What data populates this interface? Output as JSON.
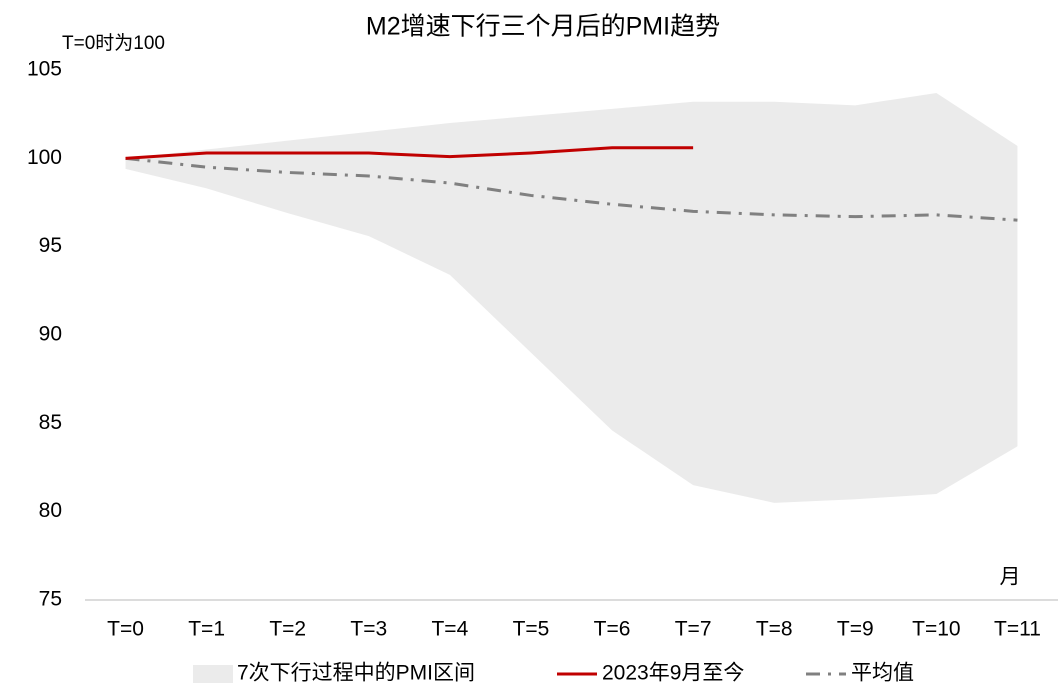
{
  "chart_data": {
    "type": "line",
    "title": "M2增速下行三个月后的PMI趋势",
    "annotations": [
      "T=0时为100",
      "月"
    ],
    "categories": [
      "T=0",
      "T=1",
      "T=2",
      "T=3",
      "T=4",
      "T=5",
      "T=6",
      "T=7",
      "T=8",
      "T=9",
      "T=10",
      "T=11"
    ],
    "band": {
      "name": "7次下行过程中的PMI区间",
      "color": "#ebebeb",
      "upper": [
        100,
        100.5,
        101,
        101.5,
        102,
        102.4,
        102.8,
        103.2,
        103.2,
        103,
        103.7,
        100.7
      ],
      "lower": [
        99.4,
        98.3,
        96.9,
        95.6,
        93.4,
        89,
        84.6,
        81.5,
        80.5,
        80.7,
        81,
        83.7
      ]
    },
    "series": [
      {
        "name": "2023年9月至今",
        "color": "#c00000",
        "dash": "solid",
        "values": [
          100,
          100.3,
          100.3,
          100.3,
          100.1,
          100.3,
          100.6,
          100.6,
          null,
          null,
          null,
          null
        ]
      },
      {
        "name": "平均值",
        "color": "#808080",
        "dash": "dashdot",
        "values": [
          100,
          99.5,
          99.2,
          99,
          98.6,
          97.9,
          97.4,
          97,
          96.8,
          96.7,
          96.8,
          96.5
        ]
      }
    ],
    "ylim": [
      75,
      105
    ],
    "yticks": [
      75,
      80,
      85,
      90,
      95,
      100,
      105
    ],
    "grid": false
  }
}
